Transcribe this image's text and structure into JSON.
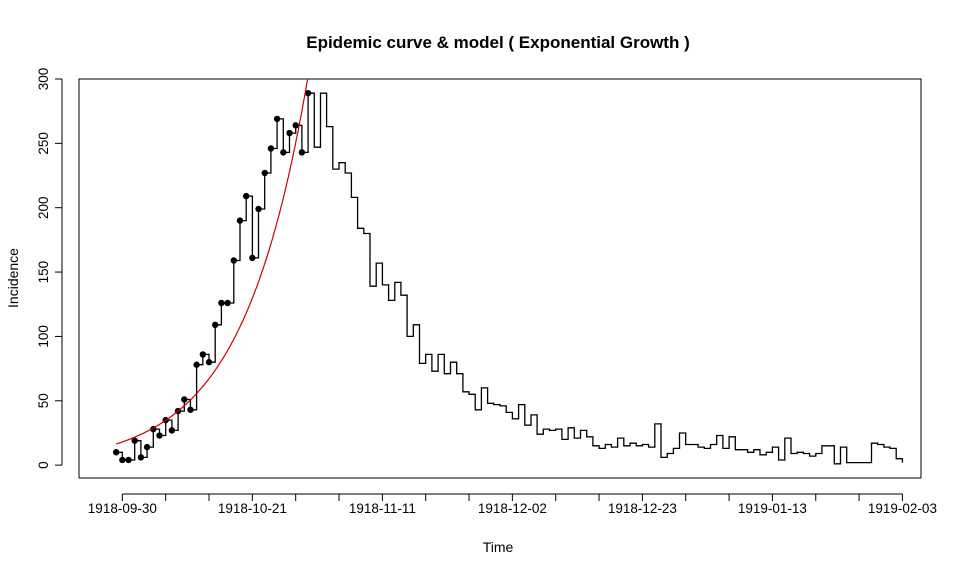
{
  "chart_data": {
    "type": "line",
    "title": "Epidemic curve & model ( Exponential Growth )",
    "xlabel": "Time",
    "ylabel": "Incidence",
    "x_tick_labels": [
      "1918-09-30",
      "1918-10-21",
      "1918-11-11",
      "1918-12-02",
      "1918-12-23",
      "1919-01-13",
      "1919-02-03"
    ],
    "y_ticks": [
      0,
      50,
      100,
      150,
      200,
      250,
      300
    ],
    "x_start_date": "1918-09-29",
    "xlim": [
      "1918-09-23",
      "1919-02-06"
    ],
    "ylim": [
      -10,
      300
    ],
    "grid": false,
    "series": [
      {
        "kind": "step",
        "color": "#000000",
        "values": [
          10,
          4,
          4,
          19,
          6,
          14,
          28,
          23,
          35,
          27,
          42,
          51,
          43,
          78,
          86,
          80,
          109,
          126,
          126,
          159,
          190,
          209,
          161,
          199,
          227,
          246,
          269,
          243,
          258,
          264,
          243,
          289,
          247,
          289,
          263,
          230,
          235,
          227,
          208,
          184,
          180,
          139,
          157,
          140,
          128,
          142,
          132,
          100,
          109,
          79,
          86,
          73,
          86,
          71,
          80,
          71,
          57,
          55,
          43,
          60,
          48,
          47,
          46,
          41,
          36,
          47,
          31,
          39,
          24,
          28,
          27,
          28,
          20,
          29,
          21,
          27,
          22,
          15,
          13,
          16,
          14,
          21,
          15,
          17,
          15,
          16,
          14,
          32,
          6,
          9,
          13,
          25,
          16,
          16,
          14,
          13,
          16,
          23,
          13,
          22,
          12,
          12,
          10,
          12,
          8,
          10,
          14,
          4,
          21,
          9,
          10,
          9,
          7,
          9,
          15,
          15,
          1,
          14,
          2,
          2,
          2,
          2,
          17,
          16,
          14,
          13,
          5,
          2
        ]
      },
      {
        "kind": "points",
        "color": "#000000",
        "values": [
          10,
          4,
          4,
          19,
          6,
          14,
          28,
          23,
          35,
          27,
          42,
          51,
          43,
          78,
          86,
          80,
          109,
          126,
          126,
          159,
          190,
          209,
          161,
          199,
          227,
          246,
          269,
          243,
          258,
          264,
          243,
          289
        ]
      },
      {
        "kind": "model",
        "color": "#cc0000",
        "a": 16.4,
        "r": 0.094
      }
    ]
  }
}
